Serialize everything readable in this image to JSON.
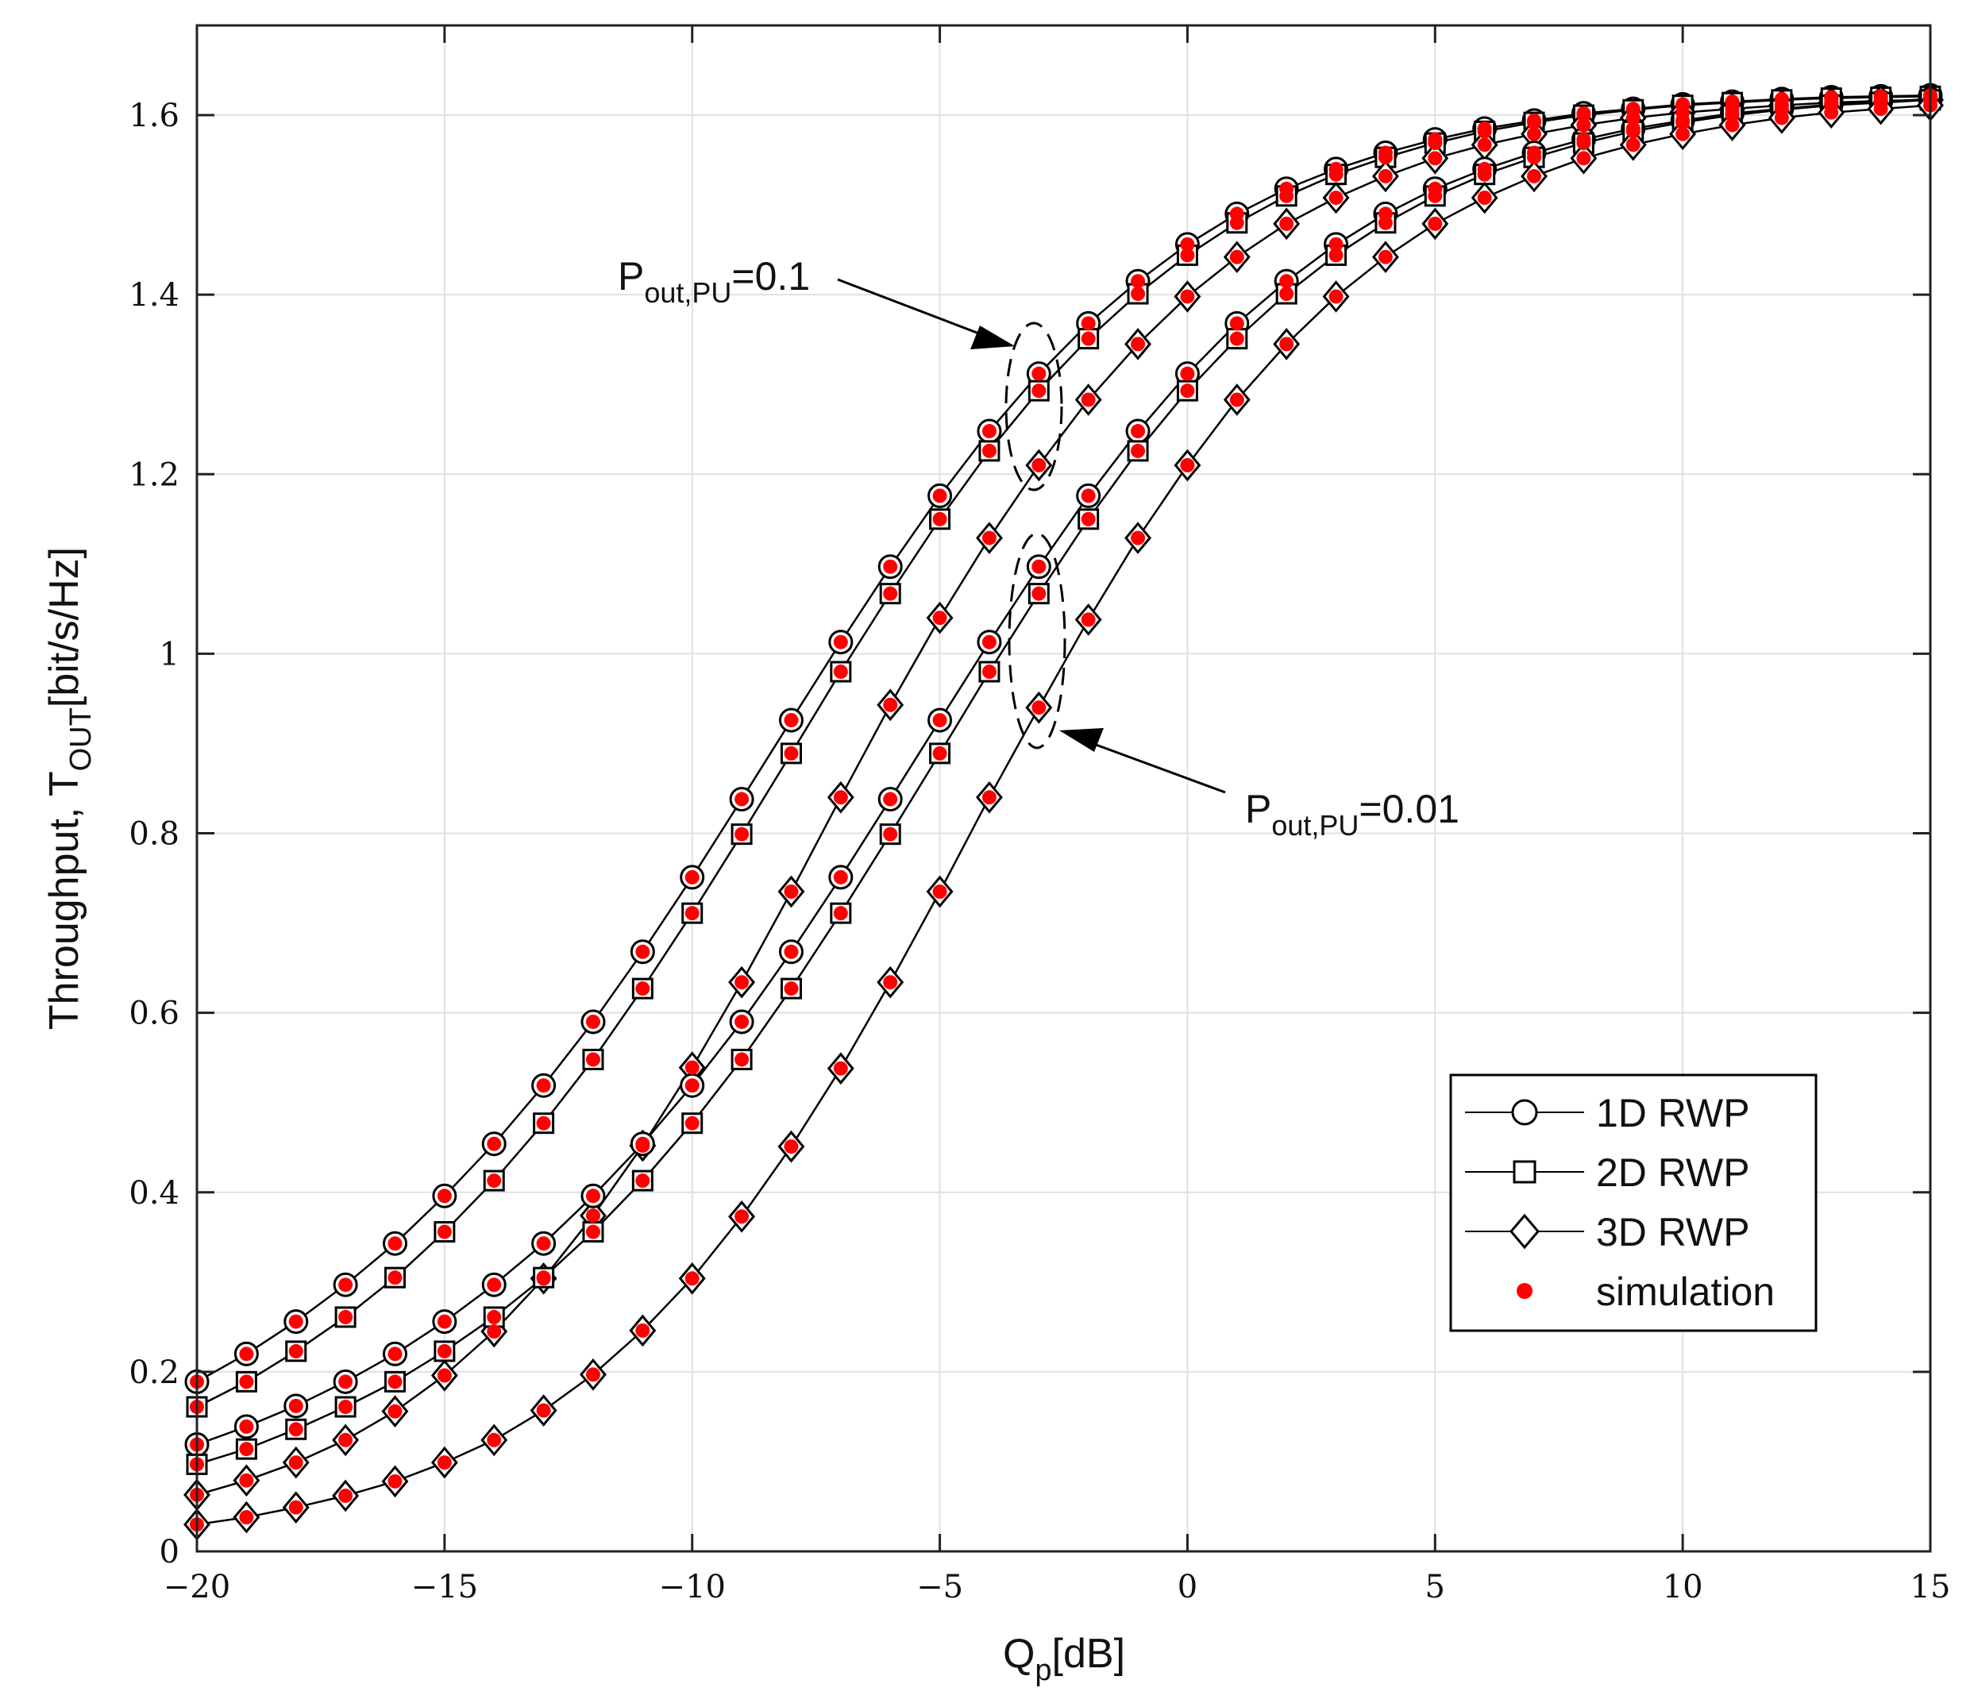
{
  "chart_data": {
    "type": "line",
    "title": "",
    "xlabel": {
      "main": "Q",
      "sub": "p",
      "suffix": "[dB]"
    },
    "ylabel": {
      "main": "Throughput, T",
      "sub": "OUT",
      "suffix": "[bit/s/Hz]"
    },
    "xlim": [
      -20,
      15
    ],
    "ylim": [
      0,
      1.7
    ],
    "xticks": [
      -20,
      -15,
      -10,
      -5,
      0,
      5,
      10,
      15
    ],
    "xtick_labels": [
      "−20",
      "−15",
      "−10",
      "−5",
      "0",
      "5",
      "10",
      "15"
    ],
    "yticks": [
      0,
      0.2,
      0.4,
      0.6,
      0.8,
      1,
      1.2,
      1.4,
      1.6
    ],
    "ytick_labels": [
      "0",
      "0.2",
      "0.4",
      "0.6",
      "0.8",
      "1",
      "1.2",
      "1.4",
      "1.6"
    ],
    "grid": true,
    "legend_position": "lower-right",
    "legend": [
      {
        "label": "1D RWP",
        "marker": "circle"
      },
      {
        "label": "2D RWP",
        "marker": "square"
      },
      {
        "label": "3D RWP",
        "marker": "diamond"
      },
      {
        "label": "simulation",
        "marker": "red-dot"
      }
    ],
    "x": [
      -20,
      -19,
      -18,
      -17,
      -16,
      -15,
      -14,
      -13,
      -12,
      -11,
      -10,
      -9,
      -8,
      -7,
      -6,
      -5,
      -4,
      -3,
      -2,
      -1,
      0,
      1,
      2,
      3,
      4,
      5,
      6,
      7,
      8,
      9,
      10,
      11,
      12,
      13,
      14,
      15
    ],
    "series": [
      {
        "name": "1D RWP, Pout,PU=0.1",
        "marker": "circle",
        "values": [
          0.189,
          0.22,
          0.256,
          0.297,
          0.343,
          0.396,
          0.454,
          0.519,
          0.59,
          0.668,
          0.751,
          0.838,
          0.926,
          1.013,
          1.097,
          1.176,
          1.248,
          1.312,
          1.368,
          1.415,
          1.456,
          1.49,
          1.518,
          1.54,
          1.558,
          1.573,
          1.585,
          1.594,
          1.602,
          1.607,
          1.612,
          1.615,
          1.618,
          1.62,
          1.621,
          1.622
        ]
      },
      {
        "name": "2D RWP, Pout,PU=0.1",
        "marker": "square",
        "values": [
          0.161,
          0.189,
          0.223,
          0.261,
          0.305,
          0.356,
          0.413,
          0.477,
          0.548,
          0.627,
          0.711,
          0.799,
          0.889,
          0.98,
          1.067,
          1.15,
          1.226,
          1.293,
          1.351,
          1.401,
          1.444,
          1.48,
          1.51,
          1.534,
          1.553,
          1.569,
          1.582,
          1.592,
          1.6,
          1.606,
          1.611,
          1.614,
          1.617,
          1.619,
          1.62,
          1.621
        ]
      },
      {
        "name": "3D RWP, Pout,PU=0.1",
        "marker": "diamond",
        "values": [
          0.063,
          0.079,
          0.099,
          0.124,
          0.156,
          0.196,
          0.245,
          0.304,
          0.374,
          0.452,
          0.539,
          0.634,
          0.735,
          0.84,
          0.943,
          1.04,
          1.129,
          1.21,
          1.283,
          1.345,
          1.398,
          1.442,
          1.479,
          1.508,
          1.532,
          1.552,
          1.567,
          1.579,
          1.589,
          1.597,
          1.603,
          1.607,
          1.611,
          1.614,
          1.616,
          1.617
        ]
      },
      {
        "name": "1D RWP, Pout,PU=0.01",
        "marker": "circle",
        "values": [
          0.119,
          0.139,
          0.162,
          0.189,
          0.22,
          0.256,
          0.297,
          0.343,
          0.396,
          0.454,
          0.519,
          0.59,
          0.668,
          0.751,
          0.838,
          0.926,
          1.013,
          1.097,
          1.176,
          1.248,
          1.312,
          1.368,
          1.415,
          1.456,
          1.49,
          1.518,
          1.54,
          1.558,
          1.573,
          1.585,
          1.594,
          1.602,
          1.607,
          1.612,
          1.615,
          1.618
        ]
      },
      {
        "name": "2D RWP, Pout,PU=0.01",
        "marker": "square",
        "values": [
          0.097,
          0.114,
          0.136,
          0.161,
          0.189,
          0.223,
          0.261,
          0.305,
          0.356,
          0.413,
          0.477,
          0.548,
          0.627,
          0.711,
          0.799,
          0.889,
          0.98,
          1.067,
          1.15,
          1.226,
          1.293,
          1.351,
          1.401,
          1.444,
          1.48,
          1.51,
          1.534,
          1.553,
          1.569,
          1.582,
          1.592,
          1.6,
          1.606,
          1.611,
          1.614,
          1.617
        ]
      },
      {
        "name": "3D RWP, Pout,PU=0.01",
        "marker": "diamond",
        "values": [
          0.03,
          0.038,
          0.049,
          0.062,
          0.078,
          0.099,
          0.124,
          0.157,
          0.197,
          0.246,
          0.304,
          0.373,
          0.451,
          0.538,
          0.634,
          0.735,
          0.84,
          0.94,
          1.038,
          1.129,
          1.21,
          1.283,
          1.345,
          1.398,
          1.442,
          1.479,
          1.508,
          1.532,
          1.552,
          1.567,
          1.579,
          1.589,
          1.597,
          1.603,
          1.607,
          1.611
        ]
      }
    ],
    "annotations": [
      {
        "id": "upper",
        "main": "P",
        "sub": "out,PU",
        "suffix": "=0.1",
        "target_x": -3,
        "target_y": 1.25
      },
      {
        "id": "lower",
        "main": "P",
        "sub": "out,PU",
        "suffix": "=0.01",
        "target_x": -3,
        "target_y": 1.04
      }
    ],
    "colors": {
      "line": "#000000",
      "marker_edge": "#000000",
      "marker_face": "#ffffff",
      "simulation_dot": "#ff0000",
      "grid": "#e0e0e0",
      "axis": "#222222"
    }
  }
}
